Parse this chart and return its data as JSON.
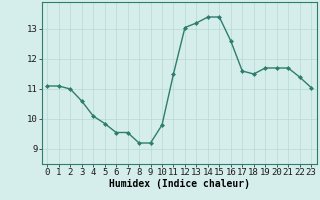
{
  "x": [
    0,
    1,
    2,
    3,
    4,
    5,
    6,
    7,
    8,
    9,
    10,
    11,
    12,
    13,
    14,
    15,
    16,
    17,
    18,
    19,
    20,
    21,
    22,
    23
  ],
  "y": [
    11.1,
    11.1,
    11.0,
    10.6,
    10.1,
    9.85,
    9.55,
    9.55,
    9.2,
    9.2,
    9.8,
    11.5,
    13.05,
    13.2,
    13.4,
    13.4,
    12.6,
    11.6,
    11.5,
    11.7,
    11.7,
    11.7,
    11.4,
    11.05
  ],
  "line_color": "#2e7d6e",
  "marker": "D",
  "marker_size": 2,
  "line_width": 1.0,
  "xlabel": "Humidex (Indice chaleur)",
  "xlabel_fontsize": 7,
  "ylim": [
    8.5,
    13.9
  ],
  "xlim": [
    -0.5,
    23.5
  ],
  "yticks": [
    9,
    10,
    11,
    12,
    13
  ],
  "xticks": [
    0,
    1,
    2,
    3,
    4,
    5,
    6,
    7,
    8,
    9,
    10,
    11,
    12,
    13,
    14,
    15,
    16,
    17,
    18,
    19,
    20,
    21,
    22,
    23
  ],
  "grid_color": "#b8d8d4",
  "bg_color": "#d5eeeb",
  "tick_fontsize": 6.5,
  "fig_bg": "#d5eeeb"
}
